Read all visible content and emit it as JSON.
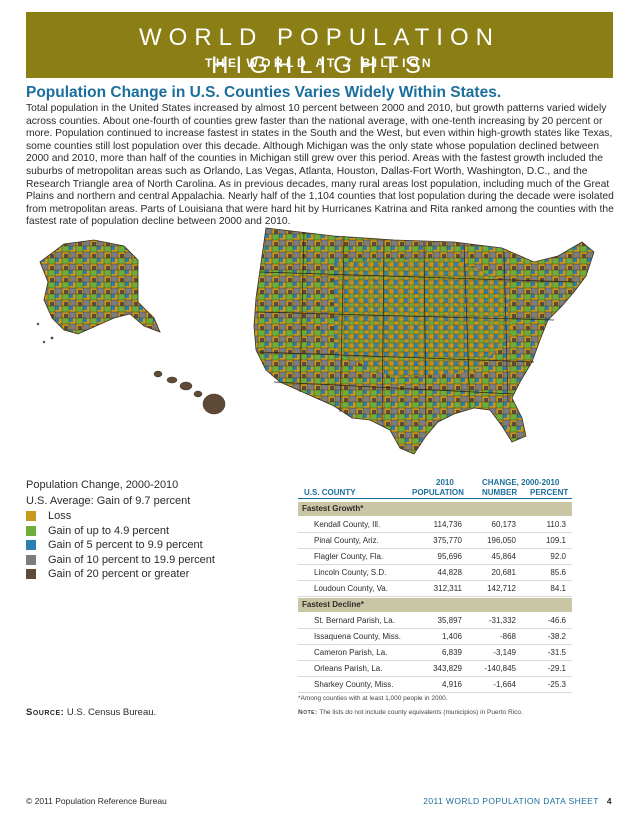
{
  "banner": {
    "title": "WORLD POPULATION HIGHLIGHTS",
    "subtitle": "THE WORLD AT 7 BILLION"
  },
  "article": {
    "heading": "Population Change in U.S. Counties Varies Widely Within States.",
    "body": "Total population in the United States increased by almost 10 percent between 2000 and 2010, but growth patterns varied widely across counties. About one-fourth of counties grew faster than the national average, with one-tenth increasing by 20 percent or more. Population continued to increase fastest in states in the South and the West, but even within high-growth states like Texas, some counties still lost population over this decade. Although Michigan was the only state whose population declined between 2000 and 2010, more than half of the counties in Michigan still grew over this period. Areas with the fastest growth included the suburbs of metropolitan areas such as Orlando, Las Vegas, Atlanta, Houston, Dallas-Fort Worth, Washington, D.C., and the Research Triangle area of North Carolina. As in previous decades, many rural areas lost population, including much of the Great Plains and northern and central Appalachia. Nearly half of the 1,104 counties that lost population during the decade were isolated from metropolitan areas. Parts of Louisiana that were hard hit by Hurricanes Katrina and Rita ranked among the counties with the fastest rate of population decline between 2000 and 2010."
  },
  "legend": {
    "title": "Population Change, 2000-2010",
    "average": "U.S. Average: Gain of 9.7 percent",
    "items": [
      {
        "label": "Loss",
        "color": "#c79a1c"
      },
      {
        "label": "Gain of up to 4.9 percent",
        "color": "#6fad3a"
      },
      {
        "label": "Gain of 5 percent to 9.9 percent",
        "color": "#2c7fb0"
      },
      {
        "label": "Gain of 10 percent to 19.9 percent",
        "color": "#7d7d7d"
      },
      {
        "label": "Gain of 20 percent or greater",
        "color": "#5e4a36"
      }
    ]
  },
  "source": {
    "label": "Source:",
    "text": "U.S. Census Bureau."
  },
  "table": {
    "header_year": "2010",
    "header_change": "CHANGE, 2000-2010",
    "col_county": "U.S. COUNTY",
    "col_population": "POPULATION",
    "col_number": "NUMBER",
    "col_percent": "PERCENT",
    "group_growth": "Fastest Growth*",
    "group_decline": "Fastest Decline*",
    "growth_rows": [
      {
        "county": "Kendall County, Ill.",
        "population": "114,736",
        "number": "60,173",
        "percent": "110.3"
      },
      {
        "county": "Pinal County, Ariz.",
        "population": "375,770",
        "number": "196,050",
        "percent": "109.1"
      },
      {
        "county": "Flagler County, Fla.",
        "population": "95,696",
        "number": "45,864",
        "percent": "92.0"
      },
      {
        "county": "Lincoln County, S.D.",
        "population": "44,828",
        "number": "20,681",
        "percent": "85.6"
      },
      {
        "county": "Loudoun County, Va.",
        "population": "312,311",
        "number": "142,712",
        "percent": "84.1"
      }
    ],
    "decline_rows": [
      {
        "county": "St. Bernard Parish, La.",
        "population": "35,897",
        "number": "-31,332",
        "percent": "-46.6"
      },
      {
        "county": "Issaquena County, Miss.",
        "population": "1,406",
        "number": "-868",
        "percent": "-38.2"
      },
      {
        "county": "Cameron Parish, La.",
        "population": "6,839",
        "number": "-3,149",
        "percent": "-31.5"
      },
      {
        "county": "Orleans Parish, La.",
        "population": "343,829",
        "number": "-140,845",
        "percent": "-29.1"
      },
      {
        "county": "Sharkey County, Miss.",
        "population": "4,916",
        "number": "-1,664",
        "percent": "-25.3"
      }
    ],
    "footnote": "*Among counties with at least 1,000 people in 2000.",
    "note_label": "Note:",
    "note_text": "The lists do not include county equivalents (municipios) in Puerto Rico."
  },
  "footer": {
    "copyright": "© 2011 Population Reference Bureau",
    "publication": "2011 WORLD POPULATION DATA SHEET",
    "page": "4"
  }
}
